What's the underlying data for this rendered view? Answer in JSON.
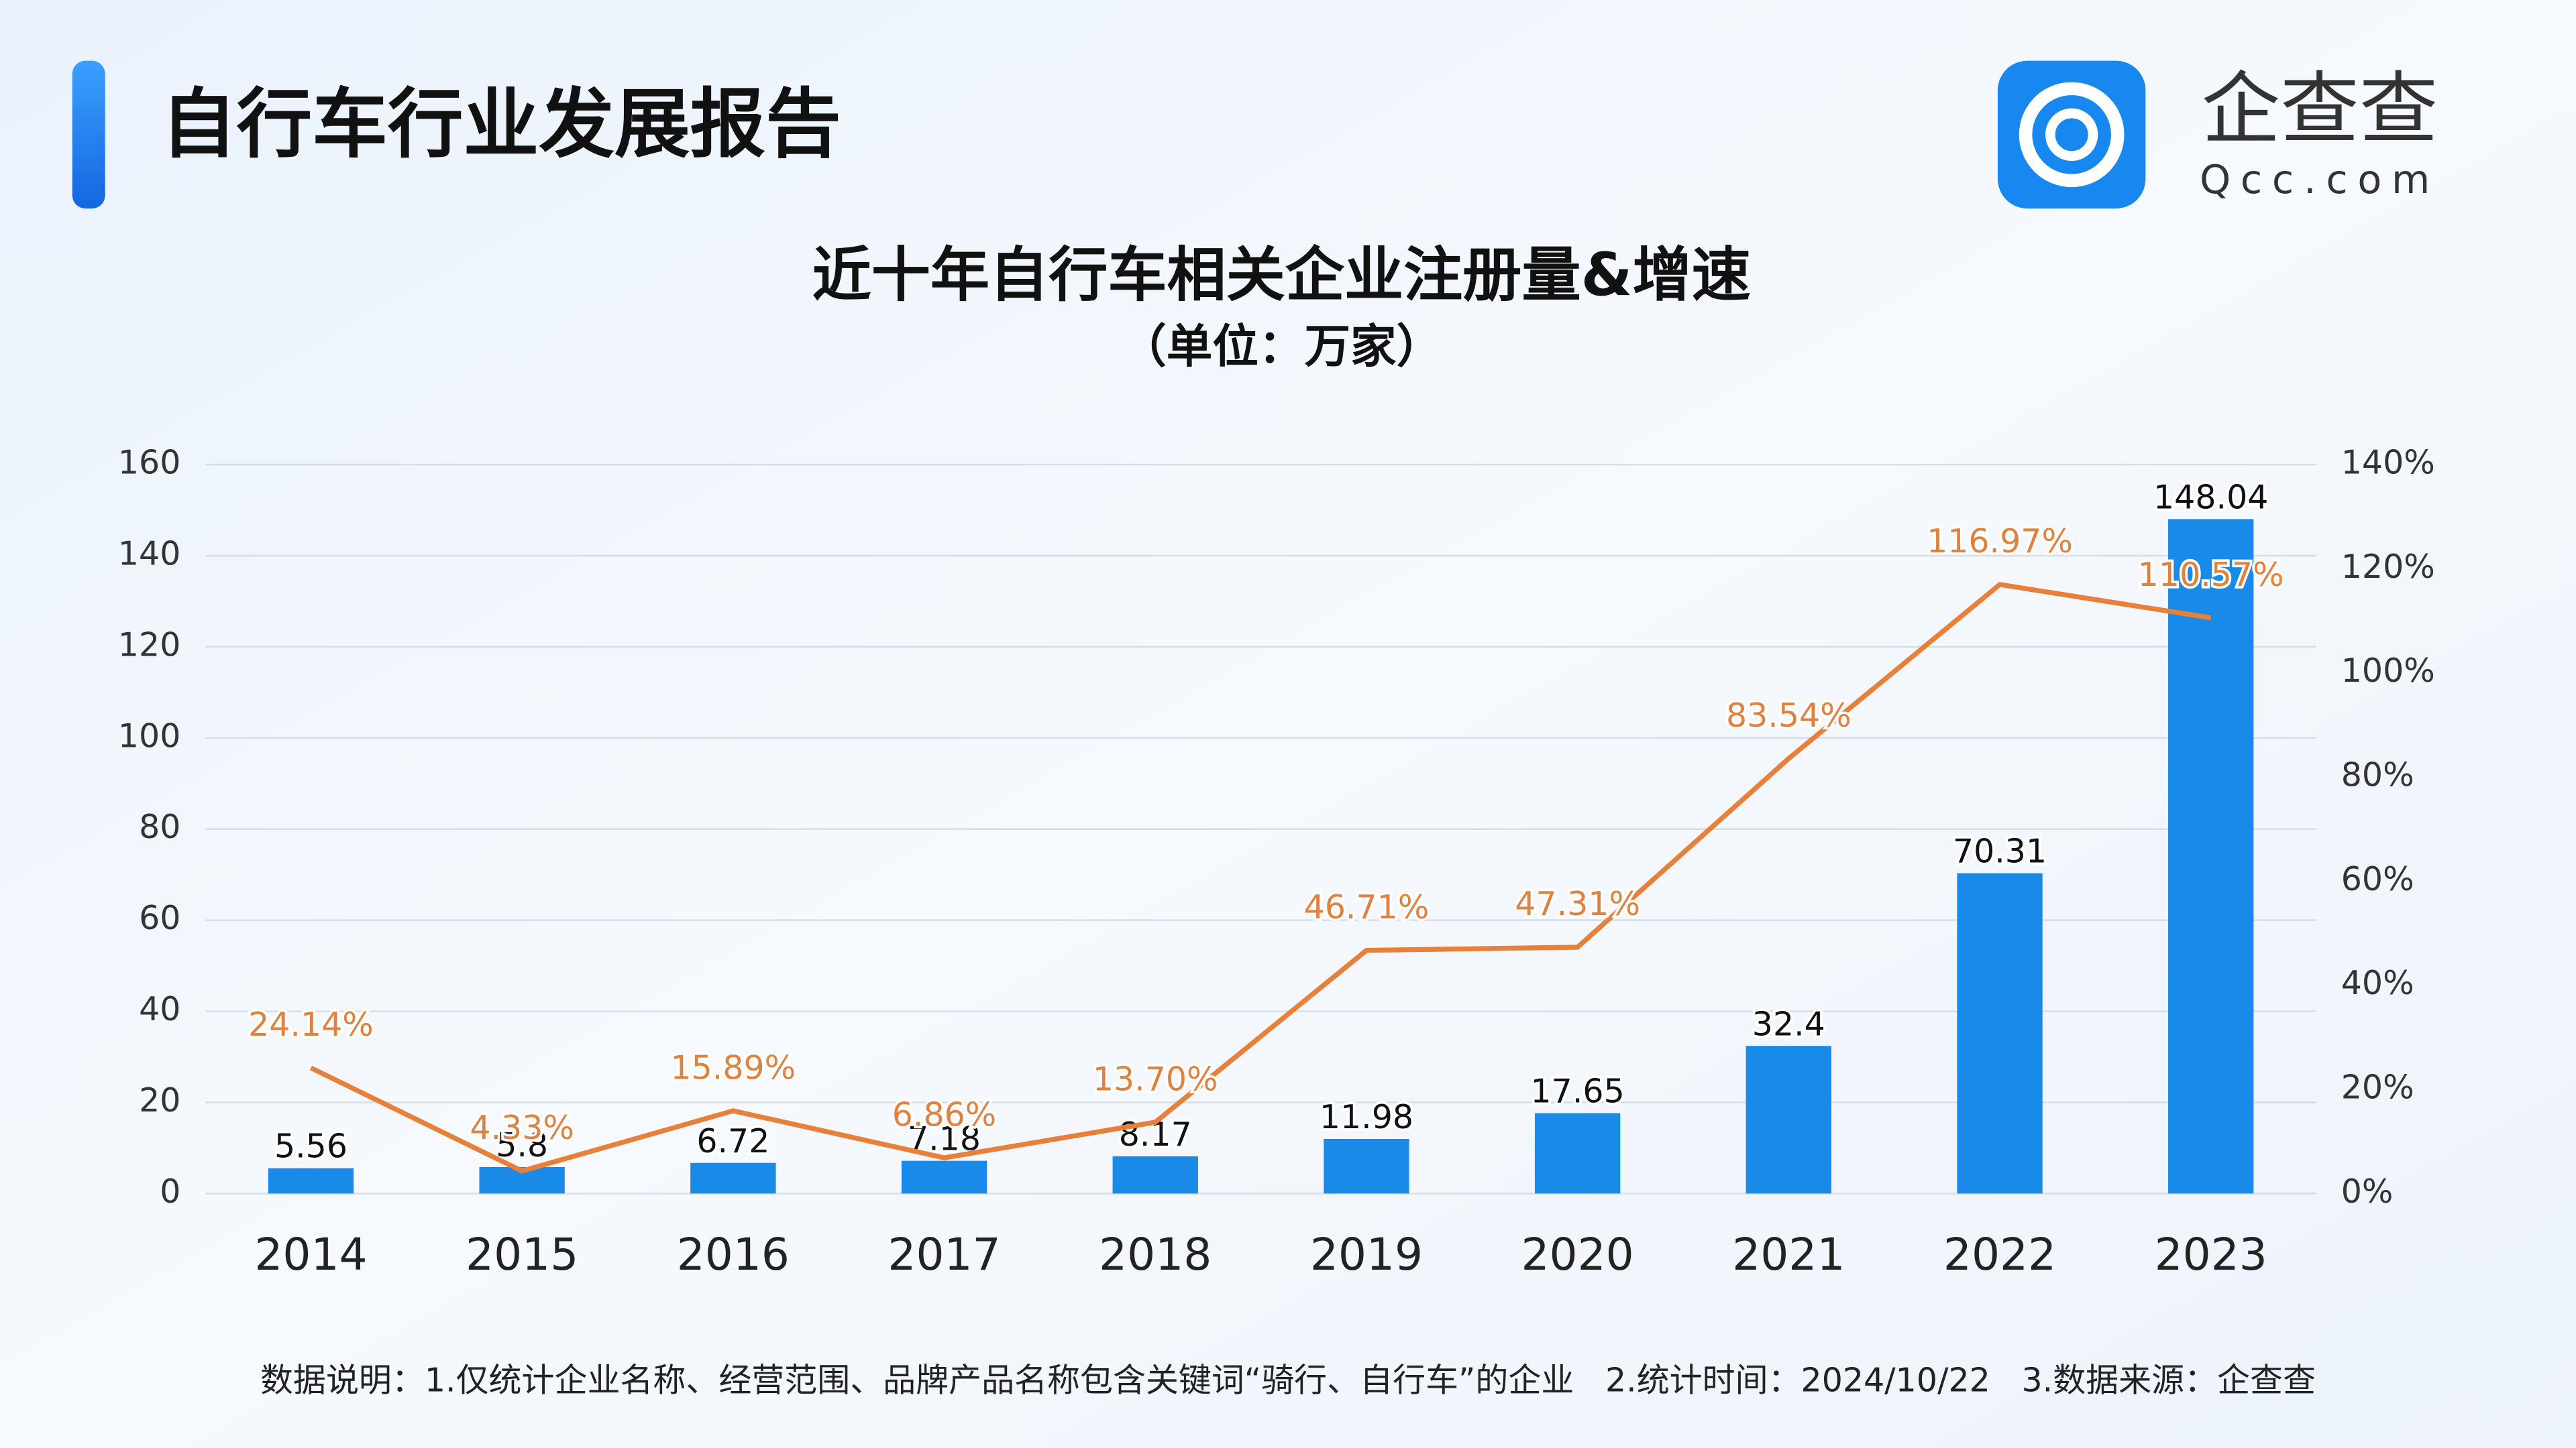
{
  "header": {
    "title": "自行车行业发展报告",
    "logo": "企查查",
    "logo_url": "Qcc.com"
  },
  "chart_data": {
    "type": "combo",
    "title": "近十年自行车相关企业注册量&增速",
    "subtitle": "（单位：万家）",
    "categories": [
      "2014",
      "2015",
      "2016",
      "2017",
      "2018",
      "2019",
      "2020",
      "2021",
      "2022",
      "2023"
    ],
    "series": [
      {
        "type": "bar",
        "color": "#1a8ae8",
        "values": [
          5.56,
          5.8,
          6.72,
          7.18,
          8.17,
          11.98,
          17.65,
          32.4,
          70.31,
          148.04
        ]
      },
      {
        "type": "line",
        "axis": "y2",
        "color": "#e8803a",
        "values": [
          24.14,
          4.33,
          15.89,
          6.86,
          13.7,
          46.71,
          47.31,
          83.54,
          116.97,
          110.57
        ],
        "value_labels": [
          "24.14%",
          "4.33%",
          "15.89%",
          "6.86%",
          "13.70%",
          "46.71%",
          "47.31%",
          "83.54%",
          "116.97%",
          "110.57%"
        ]
      }
    ],
    "ylim": [
      0,
      160
    ],
    "yticks": [
      0,
      20,
      40,
      60,
      80,
      100,
      120,
      140,
      160
    ],
    "y2lim": [
      0,
      140
    ],
    "y2ticks": [
      {
        "value": 0,
        "label": "0%"
      },
      {
        "value": 20,
        "label": "20%"
      },
      {
        "value": 40,
        "label": "40%"
      },
      {
        "value": 60,
        "label": "60%"
      },
      {
        "value": 80,
        "label": "80%"
      },
      {
        "value": 100,
        "label": "100%"
      },
      {
        "value": 120,
        "label": "120%"
      },
      {
        "value": 140,
        "label": "140%"
      }
    ],
    "grid": true
  },
  "footnote": "数据说明：1.仅统计企业名称、经营范围、品牌产品名称包含关键词“骑行、自行车”的企业   2.统计时间：2024/10/22   3.数据来源：企查查"
}
